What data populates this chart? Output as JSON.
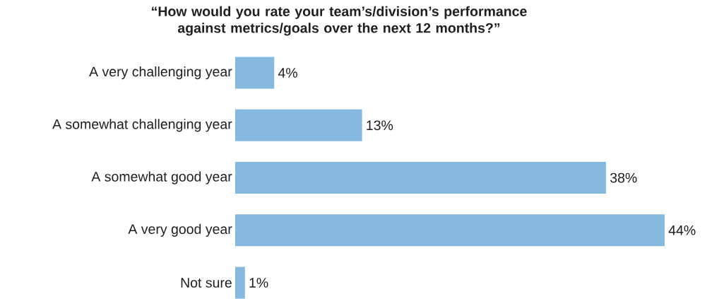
{
  "chart_data": {
    "type": "bar",
    "orientation": "horizontal",
    "title": "“How would you rate your team’s/division’s performance against metrics/goals over the next 12 months?”",
    "categories": [
      "A very challenging year",
      "A somewhat challenging year",
      "A somewhat good year",
      "A very good year",
      "Not sure"
    ],
    "values": [
      4,
      13,
      38,
      44,
      1
    ],
    "value_labels": [
      "4%",
      "13%",
      "38%",
      "44%",
      "1%"
    ],
    "color": "#85b9e0"
  }
}
